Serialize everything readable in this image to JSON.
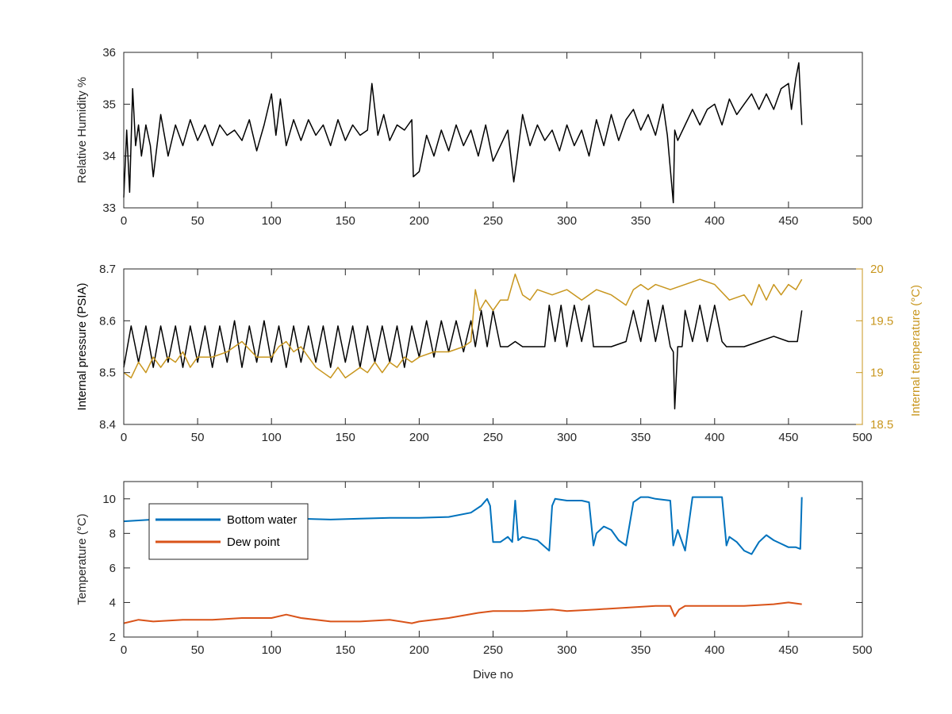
{
  "chart_data": [
    {
      "type": "line",
      "ylabel": "Relative Humidity %",
      "xlim": [
        0,
        500
      ],
      "ylim": [
        33,
        36
      ],
      "xticks": [
        0,
        50,
        100,
        150,
        200,
        250,
        300,
        350,
        400,
        450,
        500
      ],
      "yticks": [
        33,
        34,
        35,
        36
      ],
      "series": [
        {
          "color": "#000000",
          "x": [
            0,
            2,
            4,
            6,
            8,
            10,
            12,
            15,
            18,
            20,
            25,
            30,
            35,
            40,
            45,
            50,
            55,
            60,
            65,
            70,
            75,
            80,
            85,
            90,
            95,
            100,
            103,
            106,
            110,
            115,
            120,
            125,
            130,
            135,
            140,
            145,
            150,
            155,
            160,
            165,
            168,
            172,
            176,
            180,
            185,
            190,
            195,
            196,
            200,
            205,
            210,
            215,
            220,
            225,
            230,
            235,
            240,
            245,
            250,
            255,
            260,
            264,
            266,
            270,
            275,
            280,
            285,
            290,
            295,
            300,
            305,
            310,
            315,
            320,
            325,
            330,
            335,
            340,
            345,
            350,
            355,
            360,
            365,
            368,
            372,
            373,
            375,
            380,
            385,
            390,
            395,
            400,
            405,
            410,
            415,
            420,
            425,
            430,
            435,
            440,
            445,
            450,
            452,
            455,
            457,
            459
          ],
          "y": [
            33.2,
            34.5,
            33.3,
            35.3,
            34.2,
            34.6,
            34.0,
            34.6,
            34.2,
            33.6,
            34.8,
            34.0,
            34.6,
            34.2,
            34.7,
            34.3,
            34.6,
            34.2,
            34.6,
            34.4,
            34.5,
            34.3,
            34.7,
            34.1,
            34.6,
            35.2,
            34.4,
            35.1,
            34.2,
            34.7,
            34.3,
            34.7,
            34.4,
            34.6,
            34.2,
            34.7,
            34.3,
            34.6,
            34.4,
            34.5,
            35.4,
            34.4,
            34.8,
            34.3,
            34.6,
            34.5,
            34.7,
            33.6,
            33.7,
            34.4,
            34.0,
            34.5,
            34.1,
            34.6,
            34.2,
            34.5,
            34.0,
            34.6,
            33.9,
            34.2,
            34.5,
            33.5,
            33.9,
            34.8,
            34.2,
            34.6,
            34.3,
            34.5,
            34.1,
            34.6,
            34.2,
            34.5,
            34.0,
            34.7,
            34.2,
            34.8,
            34.3,
            34.7,
            34.9,
            34.5,
            34.8,
            34.4,
            35.0,
            34.4,
            33.1,
            34.5,
            34.3,
            34.6,
            34.9,
            34.6,
            34.9,
            35.0,
            34.6,
            35.1,
            34.8,
            35.0,
            35.2,
            34.9,
            35.2,
            34.9,
            35.3,
            35.4,
            34.9,
            35.5,
            35.8,
            34.6
          ]
        }
      ]
    },
    {
      "type": "line",
      "ylabel": "Internal pressure (PSIA)",
      "ylabel_right": "Internal temperature (°C)",
      "xlim": [
        0,
        500
      ],
      "ylim": [
        8.4,
        8.7
      ],
      "ylim_right": [
        18.5,
        20
      ],
      "xticks": [
        0,
        50,
        100,
        150,
        200,
        250,
        300,
        350,
        400,
        450,
        500
      ],
      "yticks": [
        8.4,
        8.5,
        8.6,
        8.7
      ],
      "yticks_right": [
        18.5,
        19,
        19.5,
        20
      ],
      "series": [
        {
          "axis": "left",
          "color": "#000000",
          "x": [
            0,
            5,
            10,
            15,
            20,
            25,
            30,
            35,
            40,
            45,
            50,
            55,
            60,
            65,
            70,
            75,
            80,
            85,
            90,
            95,
            100,
            105,
            110,
            115,
            120,
            125,
            130,
            135,
            140,
            145,
            150,
            155,
            160,
            165,
            170,
            175,
            180,
            185,
            190,
            195,
            200,
            205,
            210,
            215,
            220,
            225,
            230,
            235,
            238,
            242,
            246,
            250,
            255,
            260,
            265,
            270,
            275,
            280,
            285,
            288,
            292,
            296,
            300,
            305,
            310,
            315,
            318,
            322,
            330,
            340,
            345,
            350,
            355,
            360,
            365,
            370,
            372,
            373,
            375,
            378,
            380,
            385,
            390,
            395,
            400,
            405,
            408,
            412,
            420,
            430,
            440,
            450,
            456,
            459
          ],
          "y": [
            8.51,
            8.59,
            8.52,
            8.59,
            8.51,
            8.59,
            8.52,
            8.59,
            8.51,
            8.59,
            8.52,
            8.59,
            8.51,
            8.59,
            8.52,
            8.6,
            8.51,
            8.59,
            8.52,
            8.6,
            8.52,
            8.59,
            8.51,
            8.59,
            8.52,
            8.59,
            8.52,
            8.59,
            8.51,
            8.59,
            8.52,
            8.59,
            8.51,
            8.59,
            8.52,
            8.59,
            8.52,
            8.59,
            8.51,
            8.59,
            8.53,
            8.6,
            8.53,
            8.6,
            8.54,
            8.6,
            8.54,
            8.6,
            8.55,
            8.62,
            8.55,
            8.62,
            8.55,
            8.55,
            8.56,
            8.55,
            8.55,
            8.55,
            8.55,
            8.63,
            8.56,
            8.63,
            8.55,
            8.63,
            8.56,
            8.63,
            8.55,
            8.55,
            8.55,
            8.56,
            8.62,
            8.56,
            8.64,
            8.56,
            8.63,
            8.55,
            8.54,
            8.43,
            8.55,
            8.55,
            8.62,
            8.56,
            8.63,
            8.56,
            8.63,
            8.56,
            8.55,
            8.55,
            8.55,
            8.56,
            8.57,
            8.56,
            8.56,
            8.62
          ]
        },
        {
          "axis": "right",
          "color": "#C8961E",
          "x": [
            0,
            5,
            10,
            15,
            20,
            25,
            30,
            35,
            40,
            45,
            50,
            60,
            70,
            80,
            90,
            100,
            105,
            110,
            115,
            120,
            130,
            135,
            140,
            145,
            150,
            155,
            160,
            165,
            170,
            175,
            180,
            185,
            190,
            195,
            200,
            210,
            220,
            230,
            235,
            238,
            241,
            245,
            250,
            255,
            260,
            265,
            270,
            275,
            280,
            290,
            300,
            310,
            320,
            330,
            340,
            345,
            350,
            355,
            360,
            370,
            380,
            390,
            400,
            410,
            420,
            425,
            430,
            435,
            440,
            445,
            450,
            455,
            459
          ],
          "y": [
            19.0,
            18.95,
            19.1,
            19.0,
            19.15,
            19.05,
            19.15,
            19.1,
            19.2,
            19.05,
            19.15,
            19.15,
            19.2,
            19.3,
            19.15,
            19.15,
            19.25,
            19.3,
            19.2,
            19.25,
            19.05,
            19.0,
            18.95,
            19.05,
            18.95,
            19.0,
            19.05,
            19.0,
            19.1,
            19.0,
            19.1,
            19.05,
            19.15,
            19.1,
            19.15,
            19.2,
            19.2,
            19.25,
            19.3,
            19.8,
            19.6,
            19.7,
            19.6,
            19.7,
            19.7,
            19.95,
            19.75,
            19.7,
            19.8,
            19.75,
            19.8,
            19.7,
            19.8,
            19.75,
            19.65,
            19.8,
            19.85,
            19.8,
            19.85,
            19.8,
            19.85,
            19.9,
            19.85,
            19.7,
            19.75,
            19.65,
            19.85,
            19.7,
            19.85,
            19.75,
            19.85,
            19.8,
            19.9
          ]
        }
      ]
    },
    {
      "type": "line",
      "xlabel": "Dive no",
      "ylabel": "Temperature (°C)",
      "xlim": [
        0,
        500
      ],
      "ylim": [
        2,
        11
      ],
      "xticks": [
        0,
        50,
        100,
        150,
        200,
        250,
        300,
        350,
        400,
        450,
        500
      ],
      "yticks": [
        2,
        4,
        6,
        8,
        10
      ],
      "legend": "top-left",
      "series": [
        {
          "name": "Bottom water",
          "color": "#0072BD",
          "x": [
            0,
            10,
            20,
            40,
            60,
            80,
            100,
            120,
            140,
            160,
            180,
            200,
            220,
            235,
            242,
            246,
            248,
            250,
            255,
            260,
            263,
            265,
            267,
            270,
            280,
            288,
            290,
            292,
            300,
            310,
            315,
            318,
            320,
            325,
            330,
            335,
            340,
            345,
            350,
            355,
            360,
            370,
            372,
            375,
            380,
            385,
            390,
            395,
            400,
            405,
            408,
            410,
            415,
            420,
            425,
            430,
            435,
            440,
            445,
            450,
            455,
            458,
            459
          ],
          "y": [
            8.7,
            8.75,
            8.8,
            8.85,
            8.9,
            8.9,
            8.9,
            8.85,
            8.8,
            8.85,
            8.9,
            8.9,
            8.95,
            9.2,
            9.6,
            10.0,
            9.6,
            7.5,
            7.5,
            7.8,
            7.5,
            9.9,
            7.6,
            7.8,
            7.6,
            7.0,
            9.6,
            10.0,
            9.9,
            9.9,
            9.8,
            7.3,
            8.0,
            8.4,
            8.2,
            7.6,
            7.3,
            9.8,
            10.1,
            10.1,
            10.0,
            9.9,
            7.3,
            8.2,
            7.0,
            10.1,
            10.1,
            10.1,
            10.1,
            10.1,
            7.3,
            7.8,
            7.5,
            7.0,
            6.8,
            7.5,
            7.9,
            7.6,
            7.4,
            7.2,
            7.2,
            7.1,
            10.1
          ]
        },
        {
          "name": "Dew point",
          "color": "#D95319",
          "x": [
            0,
            10,
            20,
            40,
            60,
            80,
            100,
            110,
            120,
            140,
            160,
            180,
            195,
            200,
            220,
            240,
            250,
            270,
            290,
            300,
            320,
            340,
            360,
            370,
            373,
            376,
            380,
            400,
            420,
            440,
            450,
            459
          ],
          "y": [
            2.8,
            3.0,
            2.9,
            3.0,
            3.0,
            3.1,
            3.1,
            3.3,
            3.1,
            2.9,
            2.9,
            3.0,
            2.8,
            2.9,
            3.1,
            3.4,
            3.5,
            3.5,
            3.6,
            3.5,
            3.6,
            3.7,
            3.8,
            3.8,
            3.2,
            3.6,
            3.8,
            3.8,
            3.8,
            3.9,
            4.0,
            3.9
          ]
        }
      ]
    }
  ]
}
